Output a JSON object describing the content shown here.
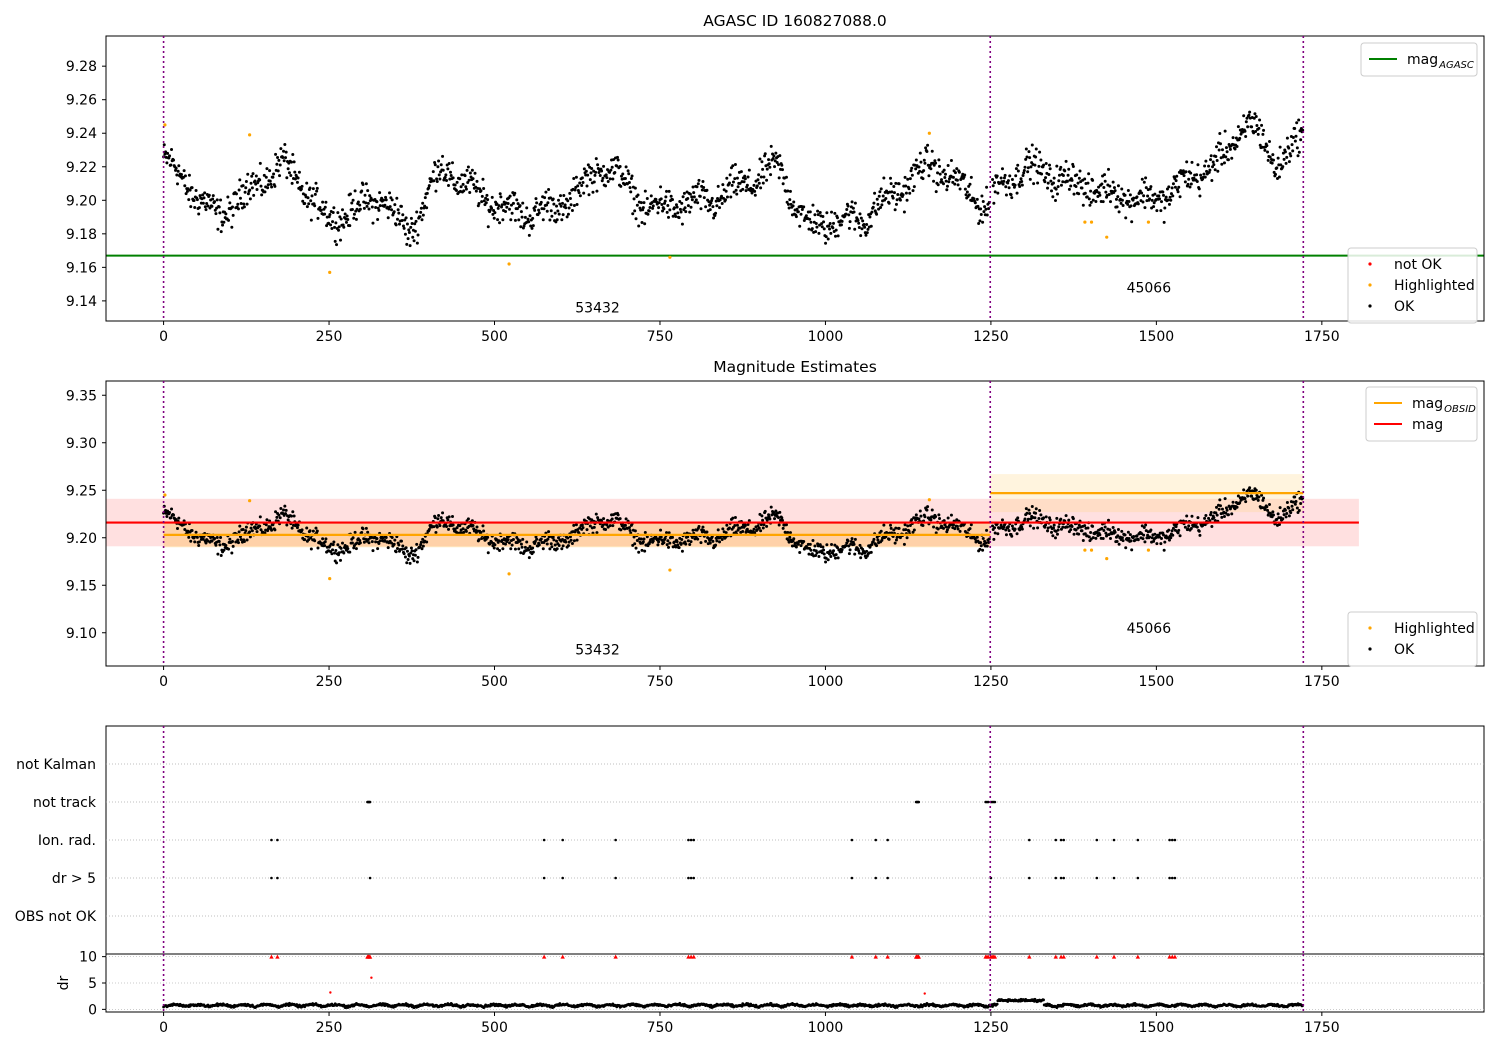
{
  "chart_data": [
    {
      "id": "panel1",
      "type": "scatter",
      "title": "AGASC ID 160827088.0",
      "xlim": [
        -87,
        1995
      ],
      "ylim": [
        9.128,
        9.298
      ],
      "xticks": [
        0,
        250,
        500,
        750,
        1000,
        1250,
        1500,
        1750
      ],
      "yticks": [
        9.14,
        9.16,
        9.18,
        9.2,
        9.22,
        9.24,
        9.26,
        9.28
      ],
      "grid": false,
      "obs_boundaries": [
        0,
        1249,
        1722
      ],
      "obs_labels": [
        {
          "text": "53432",
          "x": 622,
          "y": 9.133
        },
        {
          "text": "45066",
          "x": 1455,
          "y": 9.145
        }
      ],
      "reference_lines": [
        {
          "name": "mag_AGASC",
          "y": 9.167,
          "x": [
            -87,
            1995
          ],
          "color": "#008000"
        }
      ],
      "series": [
        {
          "name": "not OK",
          "color": "#ff0000",
          "points": []
        },
        {
          "name": "Highlighted",
          "color": "#ffa500",
          "points": [
            [
              2,
              9.245
            ],
            [
              130,
              9.239
            ],
            [
              251,
              9.157
            ],
            [
              522,
              9.162
            ],
            [
              765,
              9.166
            ],
            [
              1157,
              9.24
            ],
            [
              1392,
              9.187
            ],
            [
              1402,
              9.187
            ],
            [
              1425,
              9.178
            ],
            [
              1488,
              9.187
            ]
          ]
        },
        {
          "name": "OK",
          "color": "#000000",
          "segments": [
            {
              "x": [
                0,
                80
              ],
              "y": [
                9.225,
                9.19
              ]
            },
            {
              "x": [
                80,
                180
              ],
              "y": [
                9.19,
                9.222
              ]
            },
            {
              "x": [
                180,
                250
              ],
              "y": [
                9.222,
                9.188
              ]
            },
            {
              "x": [
                250,
                330
              ],
              "y": [
                9.188,
                9.202
              ]
            },
            {
              "x": [
                330,
                370
              ],
              "y": [
                9.202,
                9.18
              ]
            },
            {
              "x": [
                370,
                420
              ],
              "y": [
                9.18,
                9.22
              ]
            },
            {
              "x": [
                420,
                480
              ],
              "y": [
                9.22,
                9.202
              ]
            },
            {
              "x": [
                480,
                540
              ],
              "y": [
                9.202,
                9.192
              ]
            },
            {
              "x": [
                540,
                600
              ],
              "y": [
                9.192,
                9.196
              ]
            },
            {
              "x": [
                600,
                670
              ],
              "y": [
                9.196,
                9.222
              ]
            },
            {
              "x": [
                670,
                730
              ],
              "y": [
                9.222,
                9.195
              ]
            },
            {
              "x": [
                730,
                830
              ],
              "y": [
                9.195,
                9.2
              ]
            },
            {
              "x": [
                830,
                930
              ],
              "y": [
                9.2,
                9.22
              ]
            },
            {
              "x": [
                930,
                970
              ],
              "y": [
                9.22,
                9.185
              ]
            },
            {
              "x": [
                970,
                1060
              ],
              "y": [
                9.185,
                9.19
              ]
            },
            {
              "x": [
                1060,
                1160
              ],
              "y": [
                9.19,
                9.222
              ]
            },
            {
              "x": [
                1160,
                1248
              ],
              "y": [
                9.222,
                9.195
              ]
            },
            {
              "x": [
                1252,
                1300
              ],
              "y": [
                9.205,
                9.22
              ]
            },
            {
              "x": [
                1300,
                1420
              ],
              "y": [
                9.22,
                9.205
              ]
            },
            {
              "x": [
                1420,
                1500
              ],
              "y": [
                9.205,
                9.2
              ]
            },
            {
              "x": [
                1500,
                1600
              ],
              "y": [
                9.2,
                9.225
              ]
            },
            {
              "x": [
                1600,
                1640
              ],
              "y": [
                9.225,
                9.248
              ]
            },
            {
              "x": [
                1640,
                1680
              ],
              "y": [
                9.248,
                9.222
              ]
            },
            {
              "x": [
                1680,
                1722
              ],
              "y": [
                9.222,
                9.238
              ]
            }
          ],
          "scatter": 0.008,
          "count": 1720
        }
      ],
      "legends": [
        {
          "position": "upper right",
          "entries": [
            {
              "name": "mag_AGASC",
              "label": "mag",
              "sub": "AGASC",
              "kind": "line",
              "color": "#008000"
            }
          ]
        },
        {
          "position": "lower right",
          "entries": [
            {
              "name": "not OK",
              "label": "not OK",
              "kind": "dot",
              "color": "#ff0000"
            },
            {
              "name": "Highlighted",
              "label": "Highlighted",
              "kind": "dot",
              "color": "#ffa500"
            },
            {
              "name": "OK",
              "label": "OK",
              "kind": "dot",
              "color": "#000000"
            }
          ]
        }
      ]
    },
    {
      "id": "panel2",
      "type": "scatter",
      "title": "Magnitude Estimates",
      "xlim": [
        -87,
        1995
      ],
      "ylim": [
        9.065,
        9.365
      ],
      "xticks": [
        0,
        250,
        500,
        750,
        1000,
        1250,
        1500,
        1750
      ],
      "yticks": [
        9.1,
        9.15,
        9.2,
        9.25,
        9.3,
        9.35
      ],
      "grid": false,
      "obs_boundaries": [
        0,
        1249,
        1722
      ],
      "obs_labels": [
        {
          "text": "53432",
          "x": 622,
          "y": 9.077
        },
        {
          "text": "45066",
          "x": 1455,
          "y": 9.1
        }
      ],
      "bands": [
        {
          "name": "mag band",
          "x": [
            -87,
            1806
          ],
          "y": [
            9.191,
            9.241
          ],
          "color": "#ff0000",
          "opacity": 0.12
        },
        {
          "name": "mag_OBSID band 53432",
          "x": [
            0,
            1249
          ],
          "y": [
            9.19,
            9.215
          ],
          "color": "#ffa500",
          "opacity": 0.25
        },
        {
          "name": "mag_OBSID band 45066",
          "x": [
            1249,
            1722
          ],
          "y": [
            9.227,
            9.267
          ],
          "color": "#ffd27a",
          "opacity": 0.25
        }
      ],
      "reference_lines": [
        {
          "name": "mag_OBSID 53432",
          "y": 9.203,
          "x": [
            0,
            1249
          ],
          "color": "#ffa500"
        },
        {
          "name": "mag_OBSID 45066",
          "y": 9.247,
          "x": [
            1249,
            1722
          ],
          "color": "#ffa500"
        },
        {
          "name": "mag",
          "y": 9.216,
          "x": [
            -87,
            1806
          ],
          "color": "#ff0000"
        }
      ],
      "series": [
        {
          "name": "Highlighted",
          "color": "#ffa500",
          "same_as": "panel1"
        },
        {
          "name": "OK",
          "color": "#000000",
          "same_as": "panel1"
        }
      ],
      "legends": [
        {
          "position": "upper right",
          "entries": [
            {
              "name": "mag_OBSID",
              "label": "mag",
              "sub": "OBSID",
              "kind": "line",
              "color": "#ffa500"
            },
            {
              "name": "mag",
              "label": "mag",
              "kind": "line",
              "color": "#ff0000"
            }
          ]
        },
        {
          "position": "lower right",
          "entries": [
            {
              "name": "Highlighted",
              "label": "Highlighted",
              "kind": "dot",
              "color": "#ffa500"
            },
            {
              "name": "OK",
              "label": "OK",
              "kind": "dot",
              "color": "#000000"
            }
          ]
        }
      ]
    },
    {
      "id": "panel3",
      "type": "scatter",
      "title": "",
      "xlim": [
        -87,
        1995
      ],
      "flag_rows": [
        "not Kalman",
        "not track",
        "Ion. rad.",
        "dr > 5",
        "OBS not OK"
      ],
      "flag_points": {
        "not Kalman": [],
        "not track": [
          308,
          309,
          310,
          311,
          312,
          1137,
          1138,
          1139,
          1140,
          1141,
          1242,
          1244,
          1246,
          1250,
          1252,
          1254,
          1256
        ],
        "Ion. rad.": [
          163,
          172,
          575,
          603,
          683,
          793,
          797,
          801,
          1040,
          1076,
          1094,
          1308,
          1348,
          1356,
          1360,
          1410,
          1436,
          1472,
          1520,
          1524,
          1528
        ],
        "dr > 5": [
          163,
          172,
          312,
          575,
          603,
          683,
          793,
          797,
          801,
          1040,
          1076,
          1094,
          1250,
          1308,
          1348,
          1356,
          1360,
          1410,
          1436,
          1472,
          1520,
          1524,
          1528
        ],
        "OBS not OK": []
      },
      "obs_boundaries": [
        0,
        1249,
        1722
      ]
    },
    {
      "id": "panel4",
      "type": "scatter",
      "ylabel": "dr",
      "xlim": [
        -87,
        1995
      ],
      "ylim": [
        -0.5,
        10.5
      ],
      "yticks": [
        0,
        5,
        10
      ],
      "xticks": [
        0,
        250,
        500,
        750,
        1000,
        1250,
        1500,
        1750
      ],
      "obs_boundaries": [
        0,
        1249,
        1722
      ],
      "capped_markers": [
        163,
        172,
        308,
        309,
        310,
        311,
        312,
        575,
        603,
        683,
        793,
        797,
        801,
        1040,
        1076,
        1094,
        1137,
        1138,
        1139,
        1140,
        1141,
        1242,
        1244,
        1246,
        1250,
        1252,
        1254,
        1256,
        1308,
        1348,
        1356,
        1360,
        1410,
        1436,
        1472,
        1520,
        1524,
        1528
      ],
      "outliers": [
        [
          252,
          3.2
        ],
        [
          314,
          6.0
        ],
        [
          1150,
          3.0
        ]
      ],
      "baseline": {
        "mean": 0.5,
        "scatter": 0.35,
        "range": [
          0,
          1722
        ],
        "bump": {
          "x": [
            1260,
            1330
          ],
          "y": 1.7
        }
      }
    }
  ]
}
